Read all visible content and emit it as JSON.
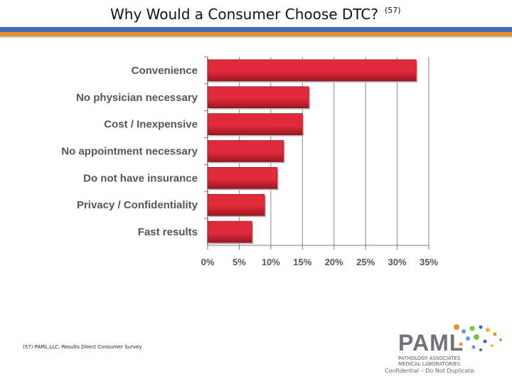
{
  "slide": {
    "title": "Why Would a Consumer Choose DTC?",
    "title_ref": "(57)",
    "footnote": "(57) PAML,LLC: Results Direct Consumer Survey",
    "confidential": "Confidential – Do Not Duplicate"
  },
  "logo": {
    "name": "PAML",
    "line1": "PATHOLOGY ASSOCIATES",
    "line2": "MEDICAL LABORATORIES",
    "dot_colors": [
      "#e8902e",
      "#5aa0d8",
      "#7cc142",
      "#2d6fb3",
      "#f2b233"
    ]
  },
  "colors": {
    "bar": "#e02b3a",
    "bar_dark": "#9e1622",
    "band_blue": "#3f6fb0",
    "band_orange": "#e8902e"
  },
  "chart_data": {
    "type": "bar",
    "orientation": "horizontal",
    "categories": [
      "Convenience",
      "No physician necessary",
      "Cost / Inexpensive",
      "No appointment necessary",
      "Do not have insurance",
      "Privacy / Confidentiality",
      "Fast results"
    ],
    "values": [
      33,
      16,
      15,
      12,
      11,
      9,
      7
    ],
    "xlim": [
      0,
      35
    ],
    "xticks": [
      "0%",
      "5%",
      "10%",
      "15%",
      "20%",
      "25%",
      "30%",
      "35%"
    ],
    "grid": true,
    "title": "",
    "xlabel": "",
    "ylabel": ""
  }
}
